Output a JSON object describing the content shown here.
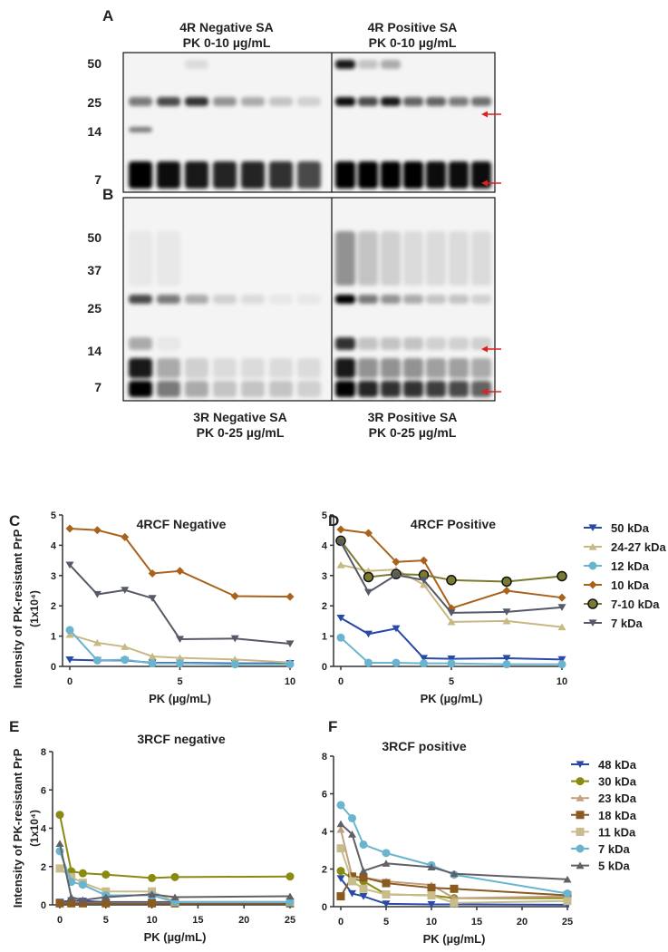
{
  "panel_labels": {
    "A": "A",
    "B": "B",
    "C": "C",
    "D": "D",
    "E": "E",
    "F": "F"
  },
  "blot_a": {
    "left_title_1": "4R Negative SA",
    "left_title_2": "PK 0-10 µg/mL",
    "right_title_1": "4R Positive SA",
    "right_title_2": "PK 0-10 µg/mL",
    "markers": [
      "50",
      "25",
      "14",
      "7"
    ]
  },
  "blot_b": {
    "left_title_1": "3R Negative SA",
    "left_title_2": "PK 0-25 µg/mL",
    "right_title_1": "3R Positive SA",
    "right_title_2": "PK 0-25 µg/mL",
    "markers": [
      "50",
      "37",
      "25",
      "14",
      "7"
    ]
  },
  "colors": {
    "arrow": "#e02020"
  },
  "chart_data": [
    {
      "id": "C",
      "type": "line",
      "title": "4RCF Negative",
      "xlabel": "PK (µg/mL)",
      "ylabel": "Intensity of PK-resistant PrP",
      "ylabel2": "(1x10⁴)",
      "xlim": [
        0,
        10
      ],
      "ylim": [
        0,
        5
      ],
      "xticks": [
        0,
        5,
        10
      ],
      "yticks": [
        0,
        1,
        2,
        3,
        4,
        5
      ],
      "x": [
        0,
        1.25,
        2.5,
        3.75,
        5,
        7.5,
        10
      ],
      "series": [
        {
          "name": "50 kDa",
          "color": "#2a4aa8",
          "marker": "tri-down",
          "values": [
            0.22,
            0.2,
            0.2,
            0.12,
            0.12,
            0.1,
            0.1
          ]
        },
        {
          "name": "24-27 kDa",
          "color": "#c8b882",
          "marker": "tri-up",
          "values": [
            1.05,
            0.78,
            0.65,
            0.33,
            0.28,
            0.23,
            0.13
          ]
        },
        {
          "name": "12 kDa",
          "color": "#6ab4d0",
          "marker": "circle",
          "values": [
            1.2,
            0.2,
            0.22,
            0.1,
            0.1,
            0.07,
            0.07
          ]
        },
        {
          "name": "10 kDa",
          "color": "#a8621c",
          "marker": "diamond",
          "values": [
            4.55,
            4.5,
            4.27,
            3.07,
            3.15,
            2.32,
            2.3
          ]
        },
        {
          "name": "7 kDa",
          "color": "#555a66",
          "marker": "tri-down",
          "values": [
            3.35,
            2.38,
            2.52,
            2.25,
            0.9,
            0.92,
            0.75
          ]
        }
      ]
    },
    {
      "id": "D",
      "type": "line",
      "title": "4RCF Positive",
      "xlabel": "PK (µg/mL)",
      "xlim": [
        0,
        10
      ],
      "ylim": [
        0,
        5
      ],
      "xticks": [
        0,
        5,
        10
      ],
      "yticks": [
        0,
        1,
        2,
        3,
        4,
        5
      ],
      "legend": "right",
      "x": [
        0,
        1.25,
        2.5,
        3.75,
        5,
        7.5,
        10
      ],
      "series": [
        {
          "name": "50 kDa",
          "color": "#2a4aa8",
          "marker": "tri-down",
          "values": [
            1.6,
            1.07,
            1.25,
            0.27,
            0.25,
            0.27,
            0.23
          ]
        },
        {
          "name": "24-27 kDa",
          "color": "#c8b882",
          "marker": "tri-up",
          "values": [
            3.35,
            3.15,
            3.2,
            2.7,
            1.47,
            1.5,
            1.3
          ]
        },
        {
          "name": "12 kDa",
          "color": "#6ab4d0",
          "marker": "circle",
          "values": [
            0.95,
            0.12,
            0.12,
            0.1,
            0.1,
            0.07,
            0.07
          ]
        },
        {
          "name": "10 kDa",
          "color": "#a8621c",
          "marker": "diamond",
          "values": [
            4.52,
            4.4,
            3.45,
            3.5,
            1.92,
            2.5,
            2.27
          ]
        },
        {
          "name": "7-10 kDa",
          "color": "#7a7a30",
          "marker": "ring",
          "values": [
            4.15,
            2.95,
            3.05,
            3.02,
            2.85,
            2.8,
            2.98
          ]
        },
        {
          "name": "7 kDa",
          "color": "#555a66",
          "marker": "tri-down",
          "values": [
            4.1,
            2.45,
            3.02,
            2.85,
            1.77,
            1.8,
            1.95
          ]
        }
      ]
    },
    {
      "id": "E",
      "type": "line",
      "title": "3RCF negative",
      "xlabel": "PK (µg/mL)",
      "ylabel": "Intensity of PK-resistant PrP",
      "ylabel2": "(1x10⁴)",
      "xlim": [
        0,
        25
      ],
      "ylim": [
        0,
        8
      ],
      "xticks": [
        0,
        5,
        10,
        15,
        20,
        25
      ],
      "yticks": [
        0,
        2,
        4,
        6,
        8
      ],
      "x": [
        0,
        1.25,
        2.5,
        5,
        10,
        12.5,
        25
      ],
      "series": [
        {
          "name": "48 kDa",
          "color": "#2a4aa8",
          "marker": "tri-down",
          "values": [
            0.15,
            0.22,
            0.2,
            0.15,
            0.15,
            0.15,
            0.15
          ]
        },
        {
          "name": "30 kDa",
          "color": "#8a8a10",
          "marker": "circle",
          "values": [
            4.7,
            1.75,
            1.65,
            1.58,
            1.4,
            1.45,
            1.48
          ]
        },
        {
          "name": "23 kDa",
          "color": "#c0a080",
          "marker": "tri-up",
          "values": [
            0.1,
            0.1,
            0.1,
            0.1,
            0.1,
            0.1,
            0.1
          ]
        },
        {
          "name": "18 kDa",
          "color": "#8a5a20",
          "marker": "square",
          "values": [
            0.08,
            0.08,
            0.08,
            0.08,
            0.08,
            0.08,
            0.08
          ]
        },
        {
          "name": "11 kDa",
          "color": "#c8bc8a",
          "marker": "square",
          "values": [
            1.9,
            1.45,
            1.15,
            0.7,
            0.7,
            0.15,
            0.15
          ]
        },
        {
          "name": "7 kDa",
          "color": "#6ab4d0",
          "marker": "circle",
          "values": [
            2.8,
            1.2,
            1.05,
            0.5,
            0.5,
            0.15,
            0.15
          ]
        },
        {
          "name": "5 kDa",
          "color": "#606068",
          "marker": "tri-up",
          "values": [
            3.2,
            0.4,
            0.25,
            0.4,
            0.55,
            0.4,
            0.45
          ]
        }
      ]
    },
    {
      "id": "F",
      "type": "line",
      "title": "3RCF positive",
      "xlabel": "PK (µg/mL)",
      "xlim": [
        0,
        25
      ],
      "ylim": [
        0,
        8
      ],
      "xticks": [
        0,
        5,
        10,
        15,
        20,
        25
      ],
      "yticks": [
        0,
        2,
        4,
        6,
        8
      ],
      "legend": "right",
      "x": [
        0,
        1.25,
        2.5,
        5,
        10,
        12.5,
        25
      ],
      "series": [
        {
          "name": "48 kDa",
          "color": "#2a4aa8",
          "marker": "tri-down",
          "values": [
            1.5,
            0.7,
            0.55,
            0.15,
            0.12,
            0.12,
            0.1
          ]
        },
        {
          "name": "30 kDa",
          "color": "#8a8a10",
          "marker": "circle",
          "values": [
            1.9,
            1.5,
            1.35,
            0.65,
            0.6,
            0.45,
            0.45
          ]
        },
        {
          "name": "23 kDa",
          "color": "#c0a080",
          "marker": "tri-up",
          "values": [
            4.1,
            1.6,
            1.55,
            1.35,
            1.15,
            0.45,
            0.55
          ]
        },
        {
          "name": "18 kDa",
          "color": "#8a5a20",
          "marker": "square",
          "values": [
            0.55,
            1.6,
            1.55,
            1.25,
            1.0,
            0.95,
            0.6
          ]
        },
        {
          "name": "11 kDa",
          "color": "#c8bc8a",
          "marker": "square",
          "values": [
            3.1,
            1.35,
            0.95,
            0.65,
            0.6,
            0.2,
            0.3
          ]
        },
        {
          "name": "7 kDa",
          "color": "#6ab4d0",
          "marker": "circle",
          "values": [
            5.4,
            4.7,
            3.3,
            2.85,
            2.2,
            1.7,
            0.7
          ]
        },
        {
          "name": "5 kDa",
          "color": "#606068",
          "marker": "tri-up",
          "values": [
            4.4,
            3.85,
            1.9,
            2.3,
            2.1,
            1.75,
            1.45
          ]
        }
      ]
    }
  ]
}
